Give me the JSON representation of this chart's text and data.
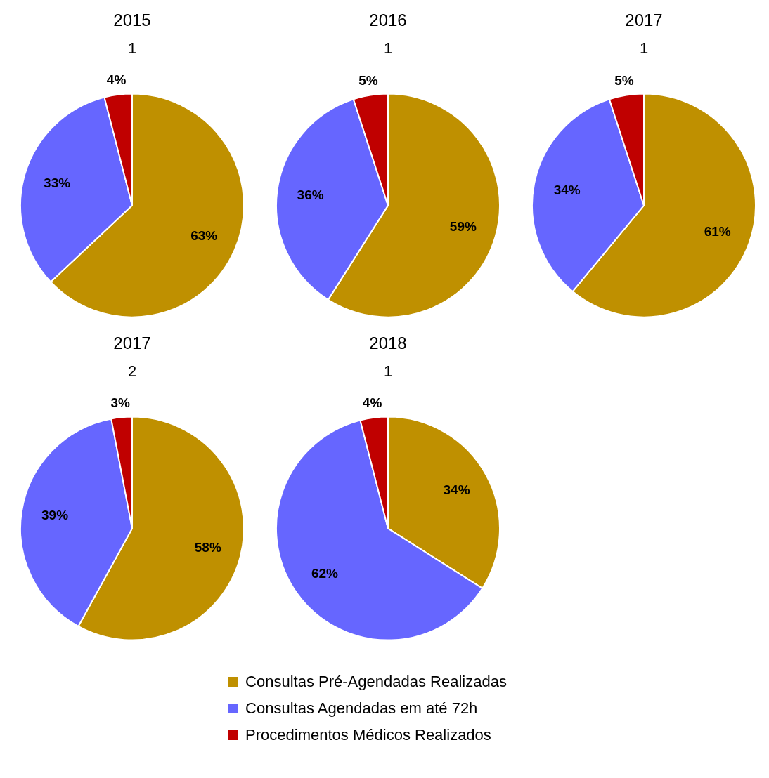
{
  "chart_data": [
    {
      "type": "pie",
      "title": "2015",
      "subtitle": "1",
      "categories": [
        "Consultas Pré-Agendadas Realizadas",
        "Consultas Agendadas em até 72h",
        "Procedimentos Médicos Realizados"
      ],
      "values": [
        63,
        33,
        4
      ],
      "colors": [
        "#bf9000",
        "#6666ff",
        "#c00000"
      ],
      "value_labels": [
        "63%",
        "33%",
        "4%"
      ],
      "legend": "bottom"
    },
    {
      "type": "pie",
      "title": "2016",
      "subtitle": "1",
      "categories": [
        null,
        null,
        null
      ],
      "values": [
        59,
        36,
        5
      ],
      "colors": [
        "#bf9000",
        "#6666ff",
        "#c00000"
      ],
      "value_labels": [
        "59%",
        "36%",
        "5%"
      ]
    },
    {
      "type": "pie",
      "title": "2017",
      "subtitle": "1",
      "categories": [
        null,
        null,
        null
      ],
      "values": [
        61,
        34,
        5
      ],
      "colors": [
        "#bf9000",
        "#6666ff",
        "#c00000"
      ],
      "value_labels": [
        "61%",
        "34%",
        "5%"
      ]
    },
    {
      "type": "pie",
      "title": "2017",
      "subtitle": "2",
      "categories": [
        null,
        null,
        null
      ],
      "values": [
        58,
        39,
        3
      ],
      "colors": [
        "#bf9000",
        "#6666ff",
        "#c00000"
      ],
      "value_labels": [
        "58%",
        "39%",
        "3%"
      ]
    },
    {
      "type": "pie",
      "title": "2018",
      "subtitle": "1",
      "categories": [
        null,
        null,
        null
      ],
      "values": [
        34,
        62,
        4
      ],
      "colors": [
        "#bf9000",
        "#6666ff",
        "#c00000"
      ],
      "value_labels": [
        "34%",
        "62%",
        "4%"
      ]
    }
  ]
}
